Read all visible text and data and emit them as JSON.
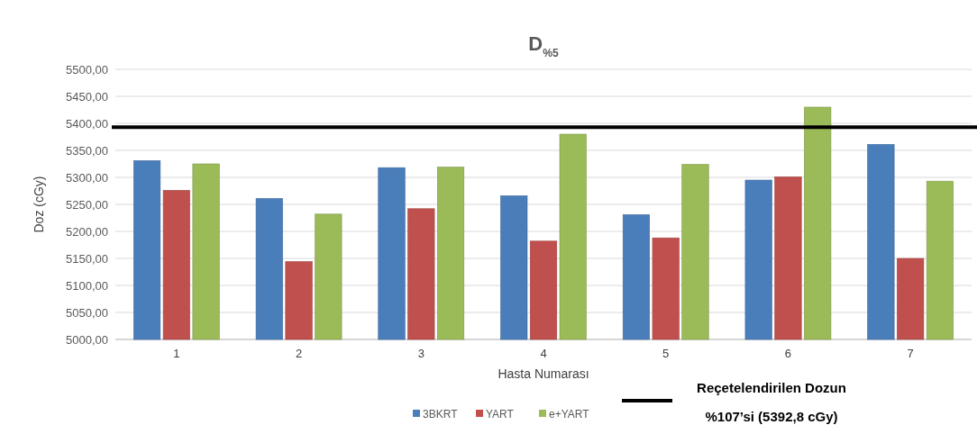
{
  "chart_data": {
    "type": "bar",
    "title": "D$_{%5}$",
    "xlabel": "Hasta Numarası",
    "ylabel": "Doz (cGy)",
    "categories": [
      "1",
      "2",
      "3",
      "4",
      "5",
      "6",
      "7"
    ],
    "series": [
      {
        "name": "3BKRT",
        "color": "#4a7ebb",
        "values": [
          5331,
          5261,
          5318,
          5266,
          5231,
          5295,
          5361
        ]
      },
      {
        "name": "YART",
        "color": "#c0504d",
        "values": [
          5276,
          5144,
          5242,
          5182,
          5188,
          5301,
          5150
        ]
      },
      {
        "name": "e+YART",
        "color": "#9bbb59",
        "values": [
          5325,
          5232,
          5319,
          5380,
          5324,
          5430,
          5293
        ]
      }
    ],
    "ylim": [
      5000,
      5500
    ],
    "yticks": [
      {
        "value": 5000,
        "label": "5000,00"
      },
      {
        "value": 5050,
        "label": "5050,00"
      },
      {
        "value": 5100,
        "label": "5100,00"
      },
      {
        "value": 5150,
        "label": "5150,00"
      },
      {
        "value": 5200,
        "label": "5200,00"
      },
      {
        "value": 5250,
        "label": "5250,00"
      },
      {
        "value": 5300,
        "label": "5300,00"
      },
      {
        "value": 5350,
        "label": "5350,00"
      },
      {
        "value": 5400,
        "label": "5400,00"
      },
      {
        "value": 5450,
        "label": "5450,00"
      },
      {
        "value": 5500,
        "label": "5500,00"
      }
    ],
    "ref_lines": [
      {
        "axis": "y",
        "value": 5392.8,
        "label": "Reçetelendirilen Dozun %107’si (5392,8 cGy)",
        "color": "#000000"
      }
    ],
    "grid": "y",
    "legend": "bottom"
  }
}
